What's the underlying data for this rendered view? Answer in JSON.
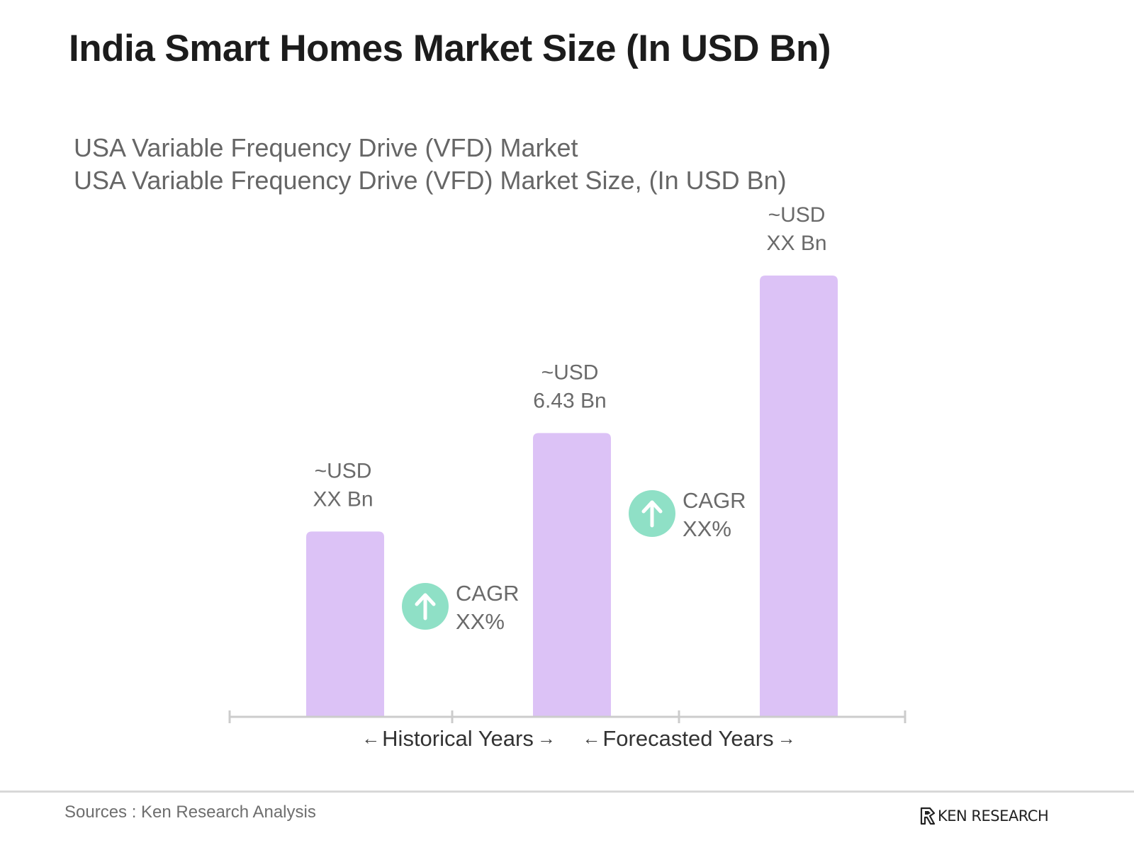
{
  "header": {
    "title": "India Smart Homes Market Size (In USD Bn)",
    "subtitle_line1": "USA Variable Frequency Drive (VFD) Market",
    "subtitle_line2": "USA Variable Frequency Drive (VFD) Market Size, (In USD Bn)"
  },
  "chart_data": {
    "type": "bar",
    "categories": [
      "",
      "",
      ""
    ],
    "values": [
      4.2,
      6.43,
      10.0
    ],
    "data_labels": [
      [
        "~USD",
        "XX Bn"
      ],
      [
        "~USD",
        "6.43 Bn"
      ],
      [
        "~USD",
        "XX Bn"
      ]
    ],
    "bar_color": "#dcc2f6",
    "ylim": [
      0,
      10.0
    ],
    "y_axis_visible": false,
    "grid": false,
    "cagr_annotations": [
      {
        "label": "CAGR",
        "value": "XX%",
        "between": [
          0,
          1
        ]
      },
      {
        "label": "CAGR",
        "value": "XX%",
        "between": [
          1,
          2
        ]
      }
    ],
    "cagr_icon": "up-arrow-circle-icon",
    "cagr_icon_color": "#8fe0c6",
    "period_labels": [
      {
        "label": "Historical Years",
        "left_arrow": "←",
        "right_arrow": "→"
      },
      {
        "label": "Forecasted Years",
        "left_arrow": "←",
        "right_arrow": "→"
      }
    ],
    "axis_color": "#cccccc"
  },
  "footer": {
    "sources": "Sources : Ken Research Analysis",
    "brand": "KEN RESEARCH",
    "brand_icon": "ken-research-logo-icon"
  }
}
